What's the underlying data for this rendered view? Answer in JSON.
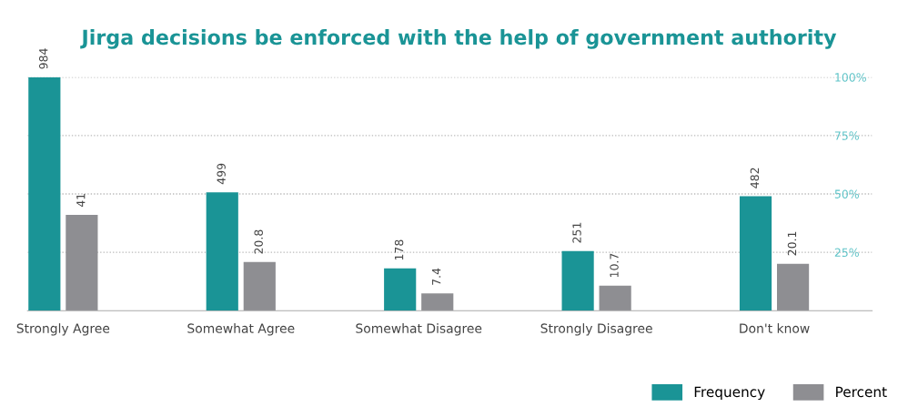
{
  "chart_data": {
    "type": "bar",
    "title": "Jirga decisions be enforced with the help of government authority",
    "categories": [
      "Strongly Agree",
      "Somewhat Agree",
      "Somewhat Disagree",
      "Strongly Disagree",
      "Don't know"
    ],
    "series": [
      {
        "name": "Frequency",
        "color": "#1a9496",
        "values": [
          984,
          499,
          178,
          251,
          482
        ],
        "axis": "y2"
      },
      {
        "name": "Percent",
        "color": "#8e8e92",
        "values": [
          41,
          20.8,
          7.4,
          10.7,
          20.1
        ]
      }
    ],
    "ylim": [
      0,
      100
    ],
    "yticks": [
      {
        "value": 25,
        "label": "25%"
      },
      {
        "value": 50,
        "label": "50%"
      },
      {
        "value": 75,
        "label": "75%"
      },
      {
        "value": 100,
        "label": "100%"
      }
    ],
    "y2lim": [
      0,
      984
    ],
    "grid": "y",
    "data_labels": true,
    "legend": "bottom right"
  }
}
